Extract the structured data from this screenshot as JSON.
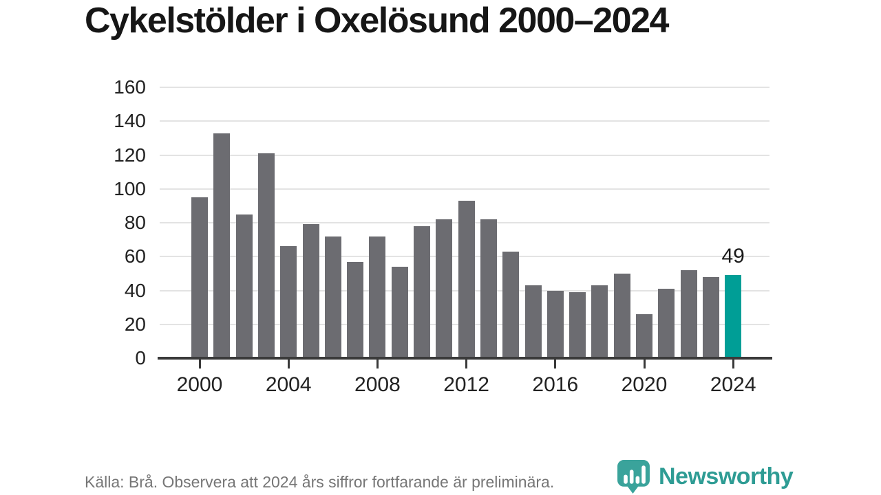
{
  "title": "Cykelstölder i Oxelösund 2000–2024",
  "chart_data": {
    "type": "bar",
    "title": "Cykelstölder i Oxelösund 2000–2024",
    "x": [
      2000,
      2001,
      2002,
      2003,
      2004,
      2005,
      2006,
      2007,
      2008,
      2009,
      2010,
      2011,
      2012,
      2013,
      2014,
      2015,
      2016,
      2017,
      2018,
      2019,
      2020,
      2021,
      2022,
      2023,
      2024
    ],
    "values": [
      95,
      133,
      85,
      121,
      66,
      79,
      72,
      57,
      72,
      54,
      78,
      82,
      93,
      82,
      63,
      43,
      40,
      39,
      43,
      50,
      26,
      41,
      52,
      48,
      49
    ],
    "xlabel": "",
    "ylabel": "",
    "ylim": [
      0,
      160
    ],
    "yticks": [
      0,
      20,
      40,
      60,
      80,
      100,
      120,
      140,
      160
    ],
    "xticks": [
      2000,
      2004,
      2008,
      2012,
      2016,
      2020,
      2024
    ],
    "grid": "horizontal",
    "legend": "none",
    "bar_color": "#6c6c71",
    "highlight_color": "#009e96",
    "highlight_year": 2024,
    "annotation": {
      "year": 2024,
      "label": "49"
    }
  },
  "footer": {
    "source_note": "Källa: Brå. Observera att 2024 års siffror fortfarande är preliminära."
  },
  "branding": {
    "wordmark": "Newsworthy",
    "brand_color": "#2e9c94",
    "logo_color": "#3aa39b",
    "logo_icon": "newsworthy-pin-barchart-icon"
  }
}
